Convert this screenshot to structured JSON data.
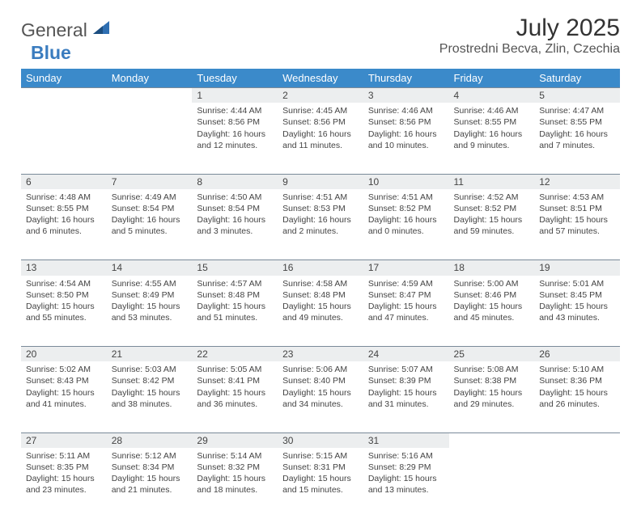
{
  "brand": {
    "part1": "General",
    "part2": "Blue"
  },
  "title": "July 2025",
  "location": "Prostredni Becva, Zlin, Czechia",
  "colors": {
    "header_bg": "#3b8aca",
    "header_text": "#ffffff",
    "daynum_bg": "#eceeef",
    "border": "#7a8a99",
    "brand_accent": "#2f6fb2"
  },
  "daysOfWeek": [
    "Sunday",
    "Monday",
    "Tuesday",
    "Wednesday",
    "Thursday",
    "Friday",
    "Saturday"
  ],
  "weeks": [
    [
      null,
      null,
      {
        "n": "1",
        "sr": "4:44 AM",
        "ss": "8:56 PM",
        "dl": "16 hours and 12 minutes."
      },
      {
        "n": "2",
        "sr": "4:45 AM",
        "ss": "8:56 PM",
        "dl": "16 hours and 11 minutes."
      },
      {
        "n": "3",
        "sr": "4:46 AM",
        "ss": "8:56 PM",
        "dl": "16 hours and 10 minutes."
      },
      {
        "n": "4",
        "sr": "4:46 AM",
        "ss": "8:55 PM",
        "dl": "16 hours and 9 minutes."
      },
      {
        "n": "5",
        "sr": "4:47 AM",
        "ss": "8:55 PM",
        "dl": "16 hours and 7 minutes."
      }
    ],
    [
      {
        "n": "6",
        "sr": "4:48 AM",
        "ss": "8:55 PM",
        "dl": "16 hours and 6 minutes."
      },
      {
        "n": "7",
        "sr": "4:49 AM",
        "ss": "8:54 PM",
        "dl": "16 hours and 5 minutes."
      },
      {
        "n": "8",
        "sr": "4:50 AM",
        "ss": "8:54 PM",
        "dl": "16 hours and 3 minutes."
      },
      {
        "n": "9",
        "sr": "4:51 AM",
        "ss": "8:53 PM",
        "dl": "16 hours and 2 minutes."
      },
      {
        "n": "10",
        "sr": "4:51 AM",
        "ss": "8:52 PM",
        "dl": "16 hours and 0 minutes."
      },
      {
        "n": "11",
        "sr": "4:52 AM",
        "ss": "8:52 PM",
        "dl": "15 hours and 59 minutes."
      },
      {
        "n": "12",
        "sr": "4:53 AM",
        "ss": "8:51 PM",
        "dl": "15 hours and 57 minutes."
      }
    ],
    [
      {
        "n": "13",
        "sr": "4:54 AM",
        "ss": "8:50 PM",
        "dl": "15 hours and 55 minutes."
      },
      {
        "n": "14",
        "sr": "4:55 AM",
        "ss": "8:49 PM",
        "dl": "15 hours and 53 minutes."
      },
      {
        "n": "15",
        "sr": "4:57 AM",
        "ss": "8:48 PM",
        "dl": "15 hours and 51 minutes."
      },
      {
        "n": "16",
        "sr": "4:58 AM",
        "ss": "8:48 PM",
        "dl": "15 hours and 49 minutes."
      },
      {
        "n": "17",
        "sr": "4:59 AM",
        "ss": "8:47 PM",
        "dl": "15 hours and 47 minutes."
      },
      {
        "n": "18",
        "sr": "5:00 AM",
        "ss": "8:46 PM",
        "dl": "15 hours and 45 minutes."
      },
      {
        "n": "19",
        "sr": "5:01 AM",
        "ss": "8:45 PM",
        "dl": "15 hours and 43 minutes."
      }
    ],
    [
      {
        "n": "20",
        "sr": "5:02 AM",
        "ss": "8:43 PM",
        "dl": "15 hours and 41 minutes."
      },
      {
        "n": "21",
        "sr": "5:03 AM",
        "ss": "8:42 PM",
        "dl": "15 hours and 38 minutes."
      },
      {
        "n": "22",
        "sr": "5:05 AM",
        "ss": "8:41 PM",
        "dl": "15 hours and 36 minutes."
      },
      {
        "n": "23",
        "sr": "5:06 AM",
        "ss": "8:40 PM",
        "dl": "15 hours and 34 minutes."
      },
      {
        "n": "24",
        "sr": "5:07 AM",
        "ss": "8:39 PM",
        "dl": "15 hours and 31 minutes."
      },
      {
        "n": "25",
        "sr": "5:08 AM",
        "ss": "8:38 PM",
        "dl": "15 hours and 29 minutes."
      },
      {
        "n": "26",
        "sr": "5:10 AM",
        "ss": "8:36 PM",
        "dl": "15 hours and 26 minutes."
      }
    ],
    [
      {
        "n": "27",
        "sr": "5:11 AM",
        "ss": "8:35 PM",
        "dl": "15 hours and 23 minutes."
      },
      {
        "n": "28",
        "sr": "5:12 AM",
        "ss": "8:34 PM",
        "dl": "15 hours and 21 minutes."
      },
      {
        "n": "29",
        "sr": "5:14 AM",
        "ss": "8:32 PM",
        "dl": "15 hours and 18 minutes."
      },
      {
        "n": "30",
        "sr": "5:15 AM",
        "ss": "8:31 PM",
        "dl": "15 hours and 15 minutes."
      },
      {
        "n": "31",
        "sr": "5:16 AM",
        "ss": "8:29 PM",
        "dl": "15 hours and 13 minutes."
      },
      null,
      null
    ]
  ],
  "labels": {
    "sunrise": "Sunrise:",
    "sunset": "Sunset:",
    "daylight": "Daylight:"
  }
}
